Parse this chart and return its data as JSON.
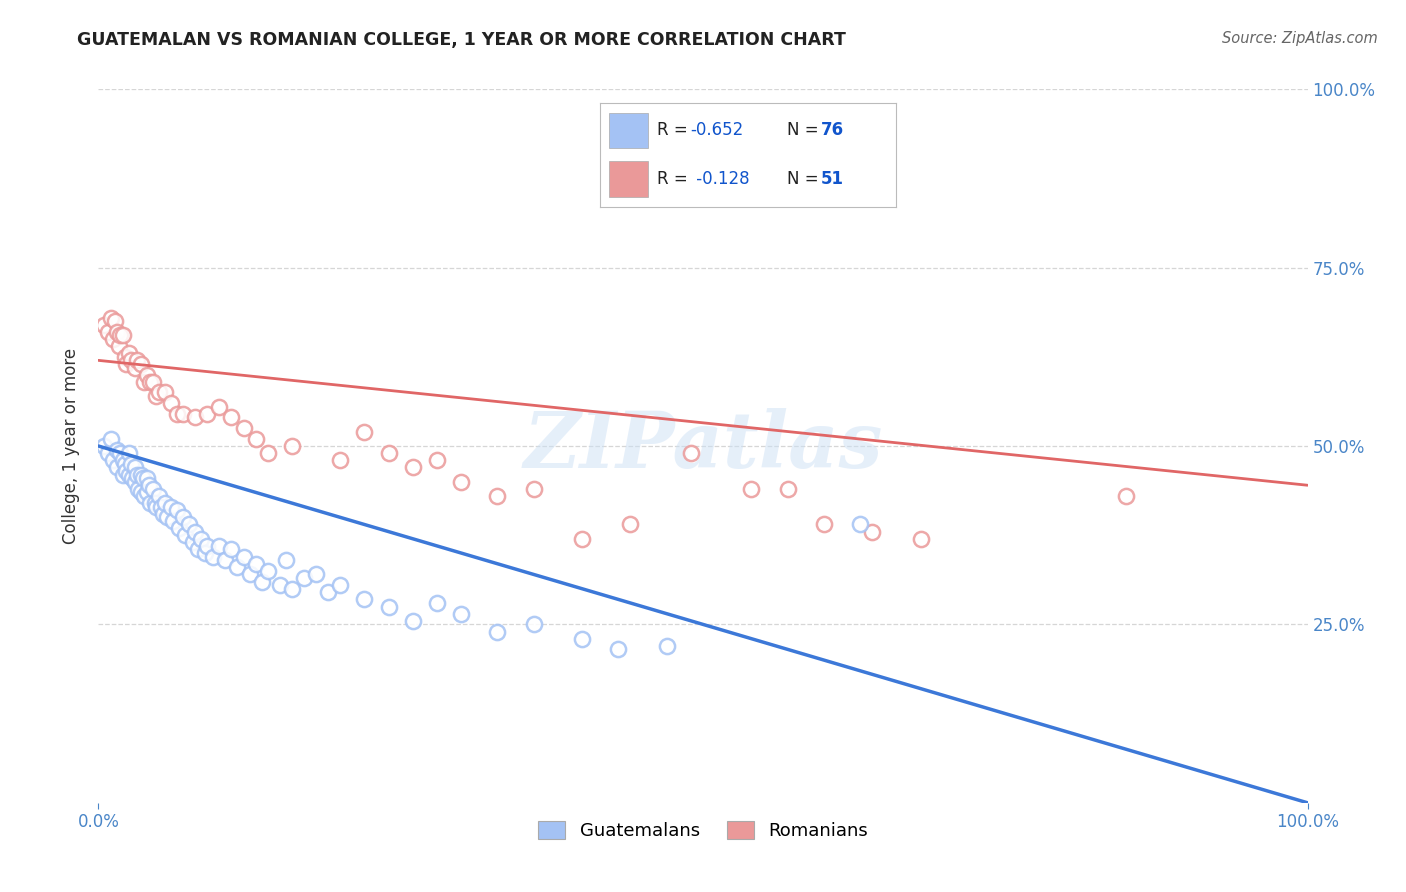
{
  "title": "GUATEMALAN VS ROMANIAN COLLEGE, 1 YEAR OR MORE CORRELATION CHART",
  "source": "Source: ZipAtlas.com",
  "ylabel": "College, 1 year or more",
  "watermark": "ZIPatlas",
  "legend_blue_r": "-0.652",
  "legend_blue_n": "76",
  "legend_pink_r": "-0.128",
  "legend_pink_n": "51",
  "legend_label1": "Guatemalans",
  "legend_label2": "Romanians",
  "blue_color": "#a4c2f4",
  "pink_color": "#ea9999",
  "blue_line_color": "#3c78d8",
  "pink_line_color": "#e06666",
  "axis_color": "#4a86c8",
  "r_value_color": "#1155cc",
  "n_value_color": "#1155cc",
  "xlim": [
    0.0,
    1.0
  ],
  "ylim": [
    0.0,
    1.0
  ],
  "blue_line_x0": 0.0,
  "blue_line_y0": 0.5,
  "blue_line_x1": 1.0,
  "blue_line_y1": 0.0,
  "pink_line_x0": 0.0,
  "pink_line_y0": 0.62,
  "pink_line_x1": 1.0,
  "pink_line_y1": 0.445,
  "blue_x": [
    0.005,
    0.008,
    0.01,
    0.012,
    0.015,
    0.015,
    0.018,
    0.02,
    0.02,
    0.022,
    0.023,
    0.025,
    0.025,
    0.027,
    0.028,
    0.03,
    0.03,
    0.032,
    0.033,
    0.035,
    0.035,
    0.037,
    0.038,
    0.04,
    0.04,
    0.042,
    0.043,
    0.045,
    0.047,
    0.048,
    0.05,
    0.052,
    0.053,
    0.055,
    0.057,
    0.06,
    0.062,
    0.065,
    0.067,
    0.07,
    0.072,
    0.075,
    0.078,
    0.08,
    0.082,
    0.085,
    0.088,
    0.09,
    0.095,
    0.1,
    0.105,
    0.11,
    0.115,
    0.12,
    0.125,
    0.13,
    0.135,
    0.14,
    0.15,
    0.155,
    0.16,
    0.17,
    0.18,
    0.19,
    0.2,
    0.22,
    0.24,
    0.26,
    0.28,
    0.3,
    0.33,
    0.36,
    0.4,
    0.43,
    0.47,
    0.63
  ],
  "blue_y": [
    0.5,
    0.49,
    0.51,
    0.48,
    0.495,
    0.47,
    0.49,
    0.48,
    0.46,
    0.475,
    0.465,
    0.49,
    0.46,
    0.475,
    0.455,
    0.47,
    0.45,
    0.46,
    0.44,
    0.46,
    0.435,
    0.455,
    0.43,
    0.455,
    0.435,
    0.445,
    0.42,
    0.44,
    0.42,
    0.415,
    0.43,
    0.415,
    0.405,
    0.42,
    0.4,
    0.415,
    0.395,
    0.41,
    0.385,
    0.4,
    0.375,
    0.39,
    0.365,
    0.38,
    0.355,
    0.37,
    0.35,
    0.36,
    0.345,
    0.36,
    0.34,
    0.355,
    0.33,
    0.345,
    0.32,
    0.335,
    0.31,
    0.325,
    0.305,
    0.34,
    0.3,
    0.315,
    0.32,
    0.295,
    0.305,
    0.285,
    0.275,
    0.255,
    0.28,
    0.265,
    0.24,
    0.25,
    0.23,
    0.215,
    0.22,
    0.39
  ],
  "pink_x": [
    0.005,
    0.008,
    0.01,
    0.012,
    0.014,
    0.015,
    0.017,
    0.018,
    0.02,
    0.022,
    0.023,
    0.025,
    0.027,
    0.03,
    0.032,
    0.035,
    0.038,
    0.04,
    0.043,
    0.045,
    0.048,
    0.05,
    0.055,
    0.06,
    0.065,
    0.07,
    0.08,
    0.09,
    0.1,
    0.11,
    0.12,
    0.13,
    0.14,
    0.16,
    0.2,
    0.22,
    0.24,
    0.26,
    0.28,
    0.3,
    0.33,
    0.36,
    0.4,
    0.44,
    0.49,
    0.54,
    0.57,
    0.6,
    0.64,
    0.68,
    0.85
  ],
  "pink_y": [
    0.67,
    0.66,
    0.68,
    0.65,
    0.675,
    0.66,
    0.64,
    0.655,
    0.655,
    0.625,
    0.615,
    0.63,
    0.62,
    0.61,
    0.62,
    0.615,
    0.59,
    0.6,
    0.59,
    0.59,
    0.57,
    0.575,
    0.575,
    0.56,
    0.545,
    0.545,
    0.54,
    0.545,
    0.555,
    0.54,
    0.525,
    0.51,
    0.49,
    0.5,
    0.48,
    0.52,
    0.49,
    0.47,
    0.48,
    0.45,
    0.43,
    0.44,
    0.37,
    0.39,
    0.49,
    0.44,
    0.44,
    0.39,
    0.38,
    0.37,
    0.43
  ],
  "grid_color": "#cccccc",
  "bg_color": "#ffffff"
}
